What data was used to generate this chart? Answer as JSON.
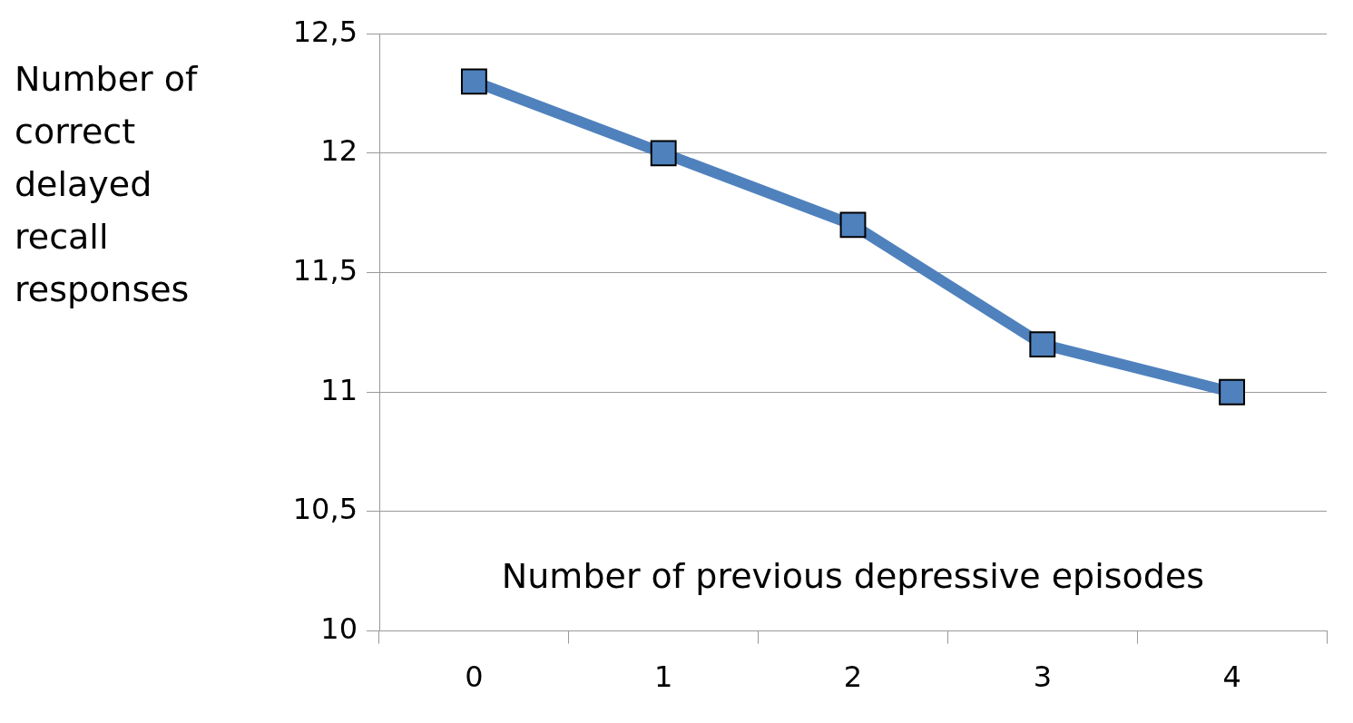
{
  "chart_data": {
    "type": "line",
    "xlabel": "Number of previous depressive episodes",
    "ylabel": "Number of correct delayed recall responses",
    "categories": [
      "0",
      "1",
      "2",
      "3",
      "4"
    ],
    "series": [
      {
        "color": "#4f81bd",
        "values": [
          12.3,
          12.0,
          11.7,
          11.2,
          11.0
        ]
      }
    ],
    "ylim": [
      10,
      12.5
    ],
    "yticks": [
      10,
      {
        "value": 10.5,
        "label": "10,5"
      },
      11,
      {
        "value": 11.5,
        "label": "11,5"
      },
      12,
      {
        "value": 12.5,
        "label": "12,5"
      }
    ],
    "grid": "y",
    "legend": false,
    "marker": "square",
    "line_style": "solid"
  }
}
